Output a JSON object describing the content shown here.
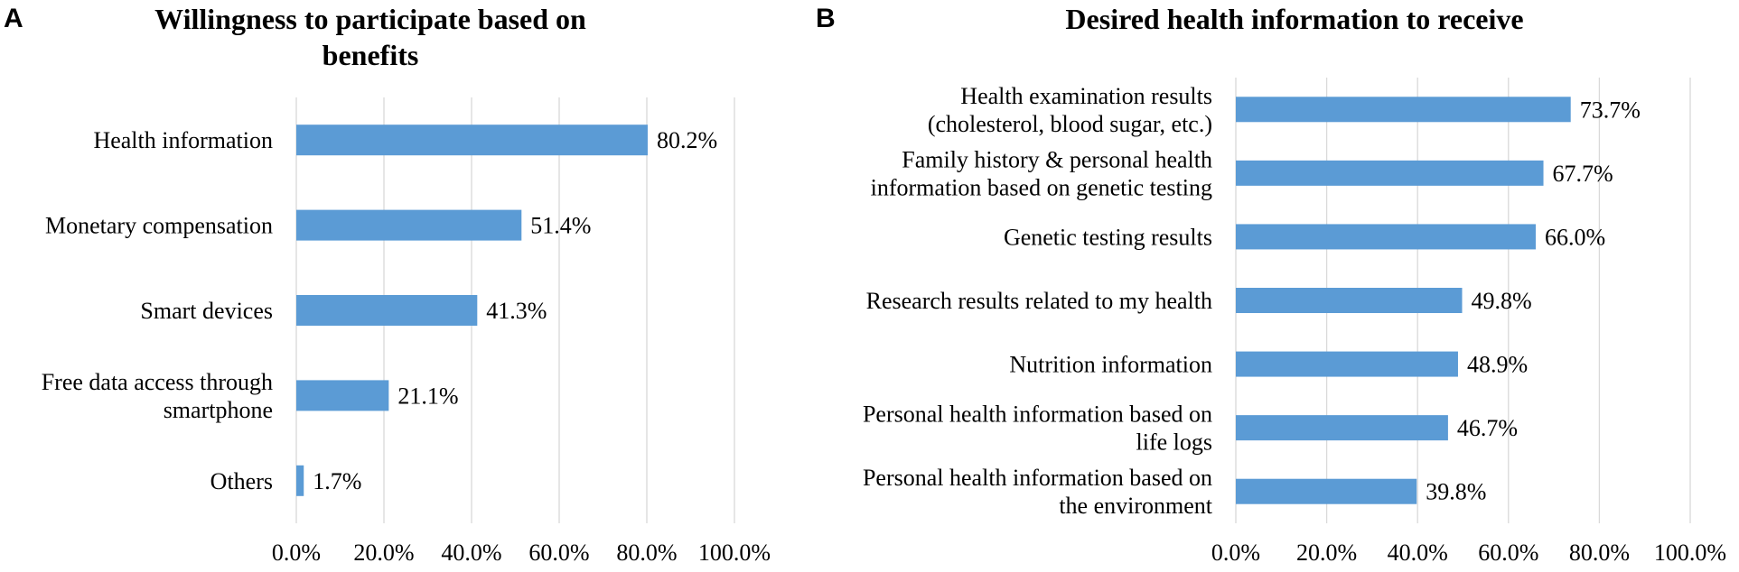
{
  "chart_data": [
    {
      "type": "bar",
      "orientation": "horizontal",
      "panel": "A",
      "title_lines": [
        "Willingness to participate based on",
        "benefits"
      ],
      "categories": [
        [
          "Health information"
        ],
        [
          "Monetary compensation"
        ],
        [
          "Smart devices"
        ],
        [
          "Free data access through",
          "smartphone"
        ],
        [
          "Others"
        ]
      ],
      "values": [
        80.2,
        51.4,
        41.3,
        21.1,
        1.7
      ],
      "value_labels": [
        "80.2%",
        "51.4%",
        "41.3%",
        "21.1%",
        "1.7%"
      ],
      "xlim": [
        0,
        100
      ],
      "xticks": [
        "0.0%",
        "20.0%",
        "40.0%",
        "60.0%",
        "80.0%",
        "100.0%"
      ],
      "grid": true,
      "bar_color": "#5b9bd5"
    },
    {
      "type": "bar",
      "orientation": "horizontal",
      "panel": "B",
      "title_lines": [
        "Desired health information to receive"
      ],
      "categories": [
        [
          "Health examination results",
          "(cholesterol, blood sugar, etc.)"
        ],
        [
          "Family history & personal health",
          "information based on genetic testing"
        ],
        [
          "Genetic testing results"
        ],
        [
          "Research results related to my health"
        ],
        [
          "Nutrition information"
        ],
        [
          "Personal health information based on",
          "life logs"
        ],
        [
          "Personal health information based on",
          "the environment"
        ]
      ],
      "values": [
        73.7,
        67.7,
        66.0,
        49.8,
        48.9,
        46.7,
        39.8
      ],
      "value_labels": [
        "73.7%",
        "67.7%",
        "66.0%",
        "49.8%",
        "48.9%",
        "46.7%",
        "39.8%"
      ],
      "xlim": [
        0,
        100
      ],
      "xticks": [
        "0.0%",
        "20.0%",
        "40.0%",
        "60.0%",
        "80.0%",
        "100.0%"
      ],
      "grid": true,
      "bar_color": "#5b9bd5"
    }
  ]
}
